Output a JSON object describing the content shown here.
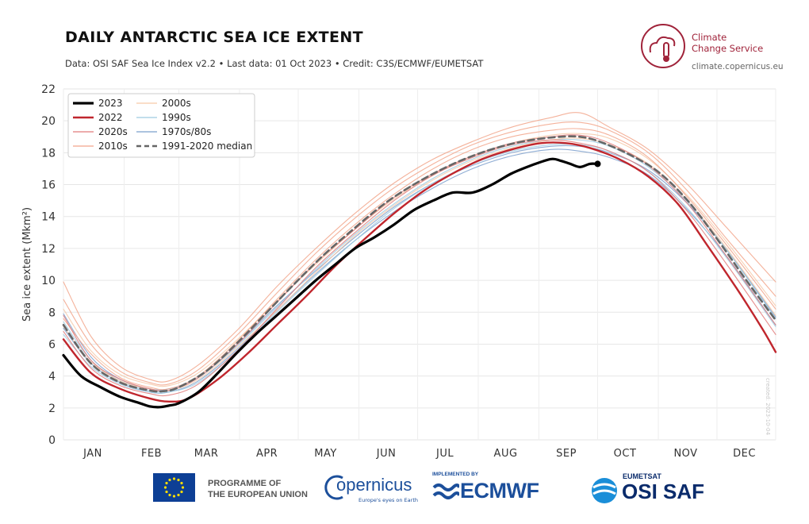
{
  "header": {
    "title": "DAILY ANTARCTIC SEA ICE EXTENT",
    "subtitle": "Data: OSI SAF Sea Ice Index v2.2 • Last data: 01 Oct 2023 • Credit: C3S/ECMWF/EUMETSAT",
    "brand_line1": "Climate",
    "brand_line2": "Change Service",
    "brand_url": "climate.copernicus.eu",
    "side_credit": "created: 2023-10-04"
  },
  "footer": {
    "eu_line1": "PROGRAMME OF",
    "eu_line2": "THE EUROPEAN UNION",
    "copernicus": "opernicus",
    "copernicus_tag": "Europe's eyes on Earth",
    "ecmwf_impl": "IMPLEMENTED BY",
    "ecmwf": "ECMWF",
    "osi_top": "EUMETSAT",
    "osi": "OSI SAF"
  },
  "colors": {
    "c2023": "#000000",
    "c2022": "#c0262d",
    "c2020s": "#e07a7a",
    "c2010s": "#f2a58a",
    "c2000s": "#f6c9a8",
    "c1990s": "#9ecae1",
    "c1970s80s": "#7b9fcc",
    "median": "#666666",
    "brand": "#a0233a"
  },
  "chart_data": {
    "type": "line",
    "ylabel": "Sea ice extent (Mkm²)",
    "xlabel": "",
    "ylim": [
      0,
      22
    ],
    "yticks": [
      0,
      2,
      4,
      6,
      8,
      10,
      12,
      14,
      16,
      18,
      20,
      22
    ],
    "xlim": [
      1,
      365
    ],
    "month_ticks": [
      {
        "label": "JAN",
        "day": 16
      },
      {
        "label": "FEB",
        "day": 46
      },
      {
        "label": "MAR",
        "day": 74
      },
      {
        "label": "APR",
        "day": 105
      },
      {
        "label": "MAY",
        "day": 135
      },
      {
        "label": "JUN",
        "day": 166
      },
      {
        "label": "JUL",
        "day": 196
      },
      {
        "label": "AUG",
        "day": 227
      },
      {
        "label": "SEP",
        "day": 258
      },
      {
        "label": "OCT",
        "day": 288
      },
      {
        "label": "NOV",
        "day": 319
      },
      {
        "label": "DEC",
        "day": 349
      }
    ],
    "month_bounds": [
      1,
      32,
      60,
      91,
      121,
      152,
      182,
      213,
      244,
      274,
      305,
      335,
      365
    ],
    "grid": true,
    "legend_position": "top-left",
    "legend": [
      {
        "label": "2023",
        "key": "c2023",
        "style": "bold"
      },
      {
        "label": "2022",
        "key": "c2022",
        "style": "medium"
      },
      {
        "label": "2020s",
        "key": "c2020s",
        "style": "thin"
      },
      {
        "label": "2010s",
        "key": "c2010s",
        "style": "thin"
      },
      {
        "label": "2000s",
        "key": "c2000s",
        "style": "thin"
      },
      {
        "label": "1990s",
        "key": "c1990s",
        "style": "thin"
      },
      {
        "label": "1970s/80s",
        "key": "c1970s80s",
        "style": "thin"
      },
      {
        "label": "1991-2020 median",
        "key": "median",
        "style": "dashed"
      }
    ],
    "series": [
      {
        "name": "1991-2020 median",
        "key": "median",
        "dashed": true,
        "x": [
          1,
          15,
          30,
          45,
          52,
          60,
          75,
          90,
          105,
          120,
          135,
          150,
          165,
          180,
          195,
          210,
          225,
          240,
          255,
          265,
          275,
          290,
          305,
          320,
          335,
          350,
          365
        ],
        "y": [
          7.2,
          4.8,
          3.6,
          3.1,
          3.05,
          3.3,
          4.4,
          6.1,
          8.0,
          9.9,
          11.7,
          13.3,
          14.8,
          16.0,
          17.0,
          17.8,
          18.4,
          18.8,
          19.0,
          19.0,
          18.7,
          17.9,
          16.8,
          15.0,
          12.6,
          10.0,
          7.5
        ]
      },
      {
        "name": "2023",
        "key": "c2023",
        "marker_end": true,
        "x": [
          1,
          10,
          20,
          30,
          40,
          45,
          50,
          55,
          60,
          70,
          80,
          90,
          100,
          110,
          120,
          130,
          140,
          150,
          160,
          170,
          180,
          190,
          200,
          210,
          220,
          230,
          240,
          250,
          255,
          260,
          265,
          270,
          274
        ],
        "y": [
          5.3,
          4.0,
          3.3,
          2.7,
          2.3,
          2.1,
          2.05,
          2.15,
          2.3,
          3.0,
          4.2,
          5.5,
          6.7,
          7.8,
          8.9,
          10.0,
          11.0,
          12.0,
          12.7,
          13.5,
          14.4,
          15.0,
          15.5,
          15.5,
          16.0,
          16.7,
          17.2,
          17.6,
          17.5,
          17.3,
          17.1,
          17.3,
          17.3
        ]
      },
      {
        "name": "2022",
        "key": "c2022",
        "x": [
          1,
          15,
          30,
          45,
          55,
          65,
          80,
          95,
          110,
          125,
          140,
          155,
          170,
          185,
          200,
          215,
          230,
          245,
          258,
          270,
          285,
          300,
          315,
          330,
          345,
          358,
          365
        ],
        "y": [
          6.3,
          4.2,
          3.2,
          2.6,
          2.4,
          2.6,
          3.8,
          5.4,
          7.2,
          9.0,
          10.9,
          12.6,
          14.2,
          15.6,
          16.7,
          17.6,
          18.2,
          18.6,
          18.6,
          18.3,
          17.6,
          16.5,
          14.8,
          12.2,
          9.5,
          7.0,
          5.5
        ]
      },
      {
        "name": "2020s",
        "key": "c2020s",
        "x": [
          1,
          15,
          30,
          45,
          55,
          70,
          90,
          110,
          130,
          150,
          170,
          190,
          210,
          230,
          250,
          265,
          280,
          300,
          320,
          340,
          365
        ],
        "y": [
          7.8,
          5.0,
          3.8,
          3.2,
          3.1,
          3.9,
          6.0,
          8.6,
          11.1,
          13.2,
          15.2,
          16.7,
          17.8,
          18.6,
          19.0,
          19.1,
          18.6,
          17.2,
          14.8,
          11.5,
          7.2
        ]
      },
      {
        "name": "2020s",
        "key": "c2020s",
        "x": [
          1,
          15,
          30,
          45,
          55,
          70,
          90,
          110,
          130,
          150,
          170,
          190,
          210,
          230,
          250,
          265,
          280,
          300,
          320,
          340,
          365
        ],
        "y": [
          6.8,
          4.5,
          3.4,
          2.9,
          2.8,
          3.5,
          5.6,
          8.2,
          10.8,
          13.0,
          15.0,
          16.6,
          17.7,
          18.5,
          18.8,
          18.6,
          18.1,
          16.8,
          14.3,
          11.0,
          6.6
        ]
      },
      {
        "name": "2010s",
        "key": "c2010s",
        "x": [
          1,
          15,
          30,
          45,
          55,
          70,
          90,
          110,
          130,
          150,
          170,
          190,
          210,
          230,
          250,
          265,
          280,
          300,
          320,
          340,
          365
        ],
        "y": [
          9.9,
          6.5,
          4.6,
          3.8,
          3.7,
          4.7,
          6.9,
          9.6,
          12.0,
          14.2,
          16.1,
          17.6,
          18.7,
          19.6,
          20.2,
          20.5,
          19.6,
          18.2,
          16.0,
          13.3,
          9.9
        ]
      },
      {
        "name": "2010s",
        "key": "c2010s",
        "x": [
          1,
          15,
          30,
          45,
          55,
          70,
          90,
          110,
          130,
          150,
          170,
          190,
          210,
          230,
          250,
          265,
          280,
          300,
          320,
          340,
          365
        ],
        "y": [
          8.8,
          6.0,
          4.3,
          3.6,
          3.5,
          4.4,
          6.6,
          9.2,
          11.7,
          13.9,
          15.8,
          17.3,
          18.5,
          19.3,
          19.8,
          19.9,
          19.4,
          18.0,
          15.6,
          12.6,
          9.0
        ]
      },
      {
        "name": "2010s",
        "key": "c2010s",
        "x": [
          1,
          15,
          30,
          45,
          55,
          70,
          90,
          110,
          130,
          150,
          170,
          190,
          210,
          230,
          250,
          265,
          280,
          300,
          320,
          340,
          365
        ],
        "y": [
          7.6,
          5.4,
          3.9,
          3.3,
          3.2,
          4.0,
          6.2,
          8.8,
          11.3,
          13.5,
          15.4,
          17.0,
          18.2,
          19.0,
          19.4,
          19.5,
          19.1,
          17.7,
          15.2,
          12.2,
          8.2
        ]
      },
      {
        "name": "2000s",
        "key": "c2000s",
        "x": [
          1,
          15,
          30,
          45,
          55,
          70,
          90,
          110,
          130,
          150,
          170,
          190,
          210,
          230,
          250,
          265,
          280,
          300,
          320,
          340,
          365
        ],
        "y": [
          8.2,
          5.6,
          4.1,
          3.5,
          3.4,
          4.2,
          6.3,
          8.7,
          11.0,
          13.2,
          15.1,
          16.6,
          17.8,
          18.6,
          19.1,
          19.2,
          18.9,
          17.6,
          15.3,
          12.4,
          8.4
        ]
      },
      {
        "name": "2000s",
        "key": "c2000s",
        "x": [
          1,
          15,
          30,
          45,
          55,
          70,
          90,
          110,
          130,
          150,
          170,
          190,
          210,
          230,
          250,
          265,
          280,
          300,
          320,
          340,
          365
        ],
        "y": [
          7.1,
          4.9,
          3.7,
          3.2,
          3.1,
          3.8,
          5.8,
          8.1,
          10.5,
          12.8,
          14.7,
          16.3,
          17.5,
          18.3,
          18.8,
          18.9,
          18.5,
          17.3,
          15.0,
          12.0,
          7.8
        ]
      },
      {
        "name": "1990s",
        "key": "c1990s",
        "x": [
          1,
          15,
          30,
          45,
          55,
          70,
          90,
          110,
          130,
          150,
          170,
          190,
          210,
          230,
          250,
          265,
          280,
          300,
          320,
          340,
          365
        ],
        "y": [
          7.4,
          5.0,
          3.7,
          3.1,
          3.1,
          3.9,
          5.9,
          8.3,
          10.7,
          12.9,
          14.8,
          16.4,
          17.6,
          18.4,
          18.8,
          18.8,
          18.4,
          17.1,
          14.9,
          11.9,
          7.6
        ]
      },
      {
        "name": "1990s",
        "key": "c1990s",
        "x": [
          1,
          15,
          30,
          45,
          55,
          70,
          90,
          110,
          130,
          150,
          170,
          190,
          210,
          230,
          250,
          265,
          280,
          300,
          320,
          340,
          365
        ],
        "y": [
          6.6,
          4.6,
          3.5,
          3.0,
          3.0,
          3.6,
          5.6,
          8.0,
          10.3,
          12.5,
          14.5,
          16.1,
          17.3,
          18.1,
          18.5,
          18.5,
          18.1,
          16.8,
          14.5,
          11.4,
          7.1
        ]
      },
      {
        "name": "1970s/80s",
        "key": "c1970s80s",
        "x": [
          1,
          15,
          30,
          45,
          55,
          70,
          90,
          110,
          130,
          150,
          170,
          190,
          210,
          230,
          250,
          265,
          280,
          300,
          320,
          340,
          365
        ],
        "y": [
          7.9,
          5.2,
          3.8,
          3.2,
          3.2,
          3.9,
          6.0,
          8.4,
          10.6,
          12.7,
          14.6,
          16.1,
          17.2,
          18.0,
          18.4,
          18.4,
          18.0,
          16.9,
          14.8,
          11.9,
          7.7
        ]
      },
      {
        "name": "1970s/80s",
        "key": "c1970s80s",
        "x": [
          1,
          15,
          30,
          45,
          55,
          70,
          90,
          110,
          130,
          150,
          170,
          190,
          210,
          230,
          250,
          265,
          280,
          300,
          320,
          340,
          365
        ],
        "y": [
          7.0,
          4.8,
          3.6,
          3.0,
          3.0,
          3.7,
          5.7,
          8.1,
          10.4,
          12.5,
          14.3,
          15.8,
          17.0,
          17.8,
          18.2,
          18.1,
          17.7,
          16.6,
          14.4,
          11.5,
          7.2
        ]
      }
    ]
  }
}
